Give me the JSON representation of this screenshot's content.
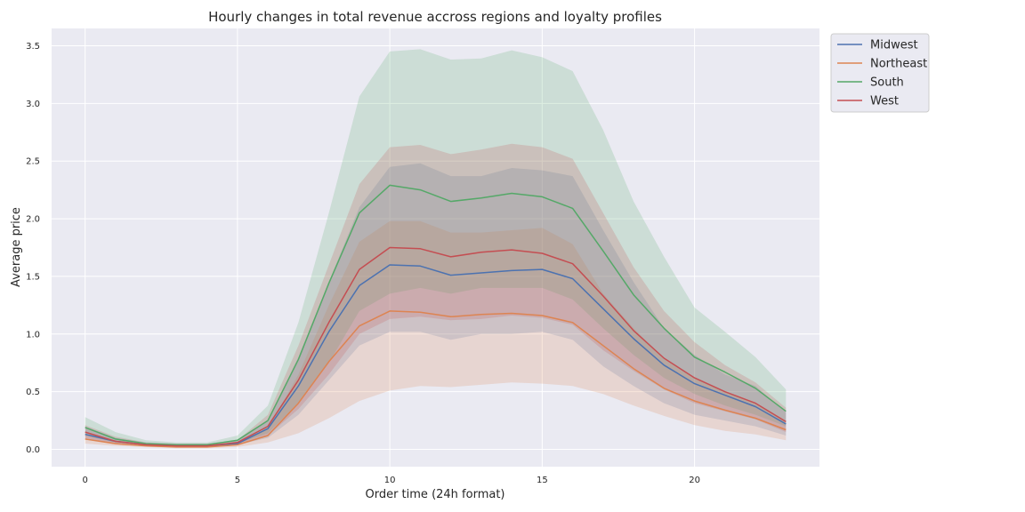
{
  "chart_data": {
    "type": "line",
    "title": "Hourly changes in total revenue accross regions and loyalty profiles",
    "xlabel": "Order time (24h format)",
    "ylabel": "Average price",
    "xlim": [
      -1.1,
      24.1
    ],
    "ylim": [
      -0.15,
      3.65
    ],
    "xticks": [
      0,
      5,
      10,
      15,
      20
    ],
    "yticks": [
      0.0,
      0.5,
      1.0,
      1.5,
      2.0,
      2.5,
      3.0,
      3.5
    ],
    "grid": true,
    "legend_position": "outside-top-right",
    "x": [
      0,
      1,
      2,
      3,
      4,
      5,
      6,
      7,
      8,
      9,
      10,
      11,
      12,
      13,
      14,
      15,
      16,
      17,
      18,
      19,
      20,
      21,
      22,
      23
    ],
    "series": [
      {
        "name": "Midwest",
        "color": "#4c72b0",
        "values": [
          0.13,
          0.07,
          0.04,
          0.03,
          0.03,
          0.05,
          0.18,
          0.55,
          1.02,
          1.42,
          1.6,
          1.59,
          1.51,
          1.53,
          1.55,
          1.56,
          1.48,
          1.22,
          0.96,
          0.73,
          0.57,
          0.47,
          0.37,
          0.22
        ],
        "lower": [
          0.09,
          0.05,
          0.03,
          0.02,
          0.02,
          0.04,
          0.1,
          0.3,
          0.6,
          0.9,
          1.02,
          1.02,
          0.95,
          1.0,
          1.0,
          1.02,
          0.95,
          0.72,
          0.55,
          0.4,
          0.3,
          0.25,
          0.2,
          0.12
        ],
        "upper": [
          0.2,
          0.1,
          0.06,
          0.05,
          0.05,
          0.08,
          0.25,
          0.8,
          1.45,
          2.1,
          2.45,
          2.48,
          2.37,
          2.37,
          2.44,
          2.42,
          2.37,
          1.9,
          1.45,
          1.05,
          0.82,
          0.65,
          0.55,
          0.32
        ]
      },
      {
        "name": "Northeast",
        "color": "#dd8452",
        "values": [
          0.09,
          0.05,
          0.03,
          0.02,
          0.02,
          0.04,
          0.12,
          0.4,
          0.76,
          1.07,
          1.2,
          1.19,
          1.15,
          1.17,
          1.18,
          1.16,
          1.1,
          0.9,
          0.7,
          0.53,
          0.42,
          0.34,
          0.27,
          0.17
        ],
        "lower": [
          0.05,
          0.03,
          0.02,
          0.01,
          0.01,
          0.02,
          0.06,
          0.14,
          0.27,
          0.42,
          0.51,
          0.55,
          0.54,
          0.56,
          0.58,
          0.57,
          0.55,
          0.48,
          0.38,
          0.29,
          0.21,
          0.16,
          0.13,
          0.08
        ],
        "upper": [
          0.14,
          0.08,
          0.05,
          0.04,
          0.04,
          0.06,
          0.18,
          0.65,
          1.25,
          1.8,
          1.98,
          1.98,
          1.88,
          1.88,
          1.9,
          1.92,
          1.78,
          1.35,
          1.05,
          0.78,
          0.62,
          0.5,
          0.4,
          0.25
        ]
      },
      {
        "name": "South",
        "color": "#55a868",
        "values": [
          0.19,
          0.09,
          0.05,
          0.04,
          0.04,
          0.08,
          0.25,
          0.78,
          1.44,
          2.05,
          2.29,
          2.25,
          2.15,
          2.18,
          2.22,
          2.19,
          2.09,
          1.72,
          1.34,
          1.05,
          0.8,
          0.67,
          0.53,
          0.33
        ],
        "lower": [
          0.12,
          0.06,
          0.04,
          0.03,
          0.03,
          0.05,
          0.14,
          0.4,
          0.75,
          1.2,
          1.35,
          1.4,
          1.35,
          1.4,
          1.4,
          1.4,
          1.3,
          1.05,
          0.82,
          0.62,
          0.48,
          0.38,
          0.3,
          0.2
        ],
        "upper": [
          0.28,
          0.15,
          0.08,
          0.06,
          0.06,
          0.12,
          0.38,
          1.1,
          2.05,
          3.06,
          3.45,
          3.47,
          3.38,
          3.39,
          3.46,
          3.4,
          3.28,
          2.77,
          2.15,
          1.67,
          1.23,
          1.02,
          0.8,
          0.52
        ]
      },
      {
        "name": "West",
        "color": "#c44e52",
        "values": [
          0.15,
          0.07,
          0.04,
          0.03,
          0.03,
          0.06,
          0.2,
          0.6,
          1.1,
          1.56,
          1.75,
          1.74,
          1.67,
          1.71,
          1.73,
          1.7,
          1.61,
          1.33,
          1.03,
          0.79,
          0.62,
          0.5,
          0.4,
          0.24
        ],
        "lower": [
          0.1,
          0.05,
          0.03,
          0.02,
          0.02,
          0.04,
          0.12,
          0.35,
          0.65,
          1.0,
          1.13,
          1.15,
          1.12,
          1.13,
          1.16,
          1.14,
          1.08,
          0.86,
          0.68,
          0.52,
          0.4,
          0.33,
          0.26,
          0.15
        ],
        "upper": [
          0.21,
          0.11,
          0.06,
          0.05,
          0.05,
          0.08,
          0.3,
          0.9,
          1.6,
          2.3,
          2.62,
          2.64,
          2.56,
          2.6,
          2.65,
          2.62,
          2.52,
          2.05,
          1.58,
          1.2,
          0.93,
          0.73,
          0.58,
          0.36
        ]
      }
    ]
  }
}
